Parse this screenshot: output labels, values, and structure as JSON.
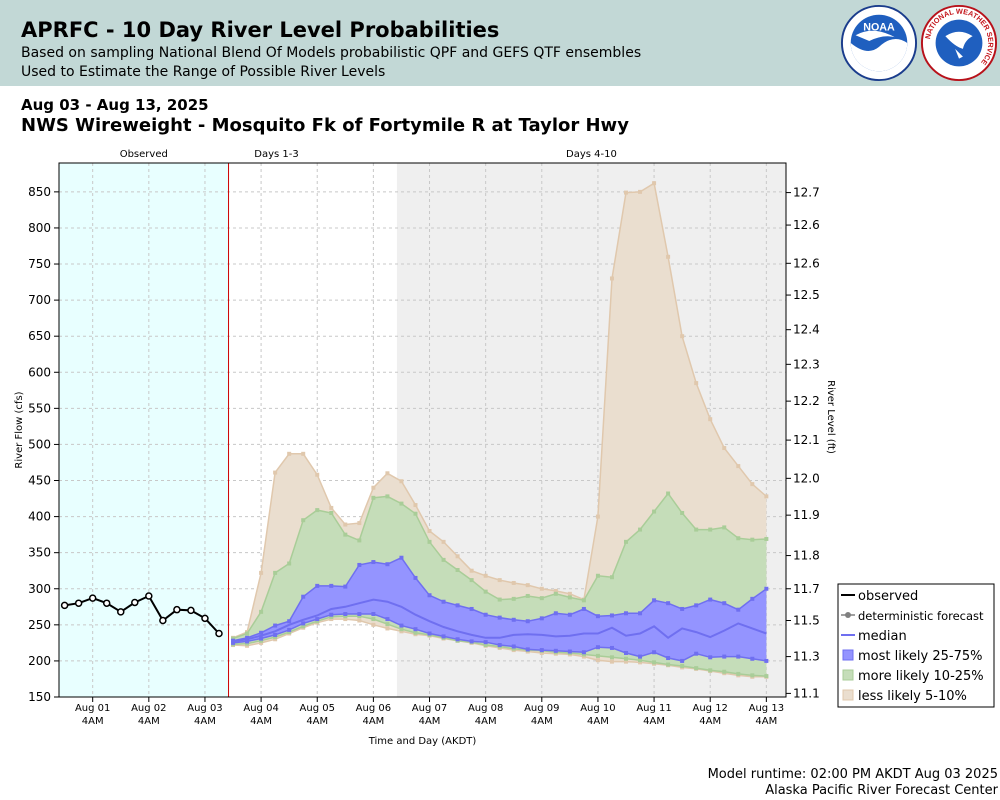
{
  "header": {
    "title": "APRFC - 10 Day River Level Probabilities",
    "subtitle1": "Based on sampling National Blend Of Models probabilistic QPF and GEFS QTF ensembles",
    "subtitle2": "Used to Estimate the Range of Possible River Levels",
    "noaa_logo_text": "NOAA",
    "nws_logo_text": "NATIONAL WEATHER SERVICE"
  },
  "date_range": "Aug 03 - Aug 13, 2025",
  "station_name": "NWS Wireweight - Mosquito Fk of Fortymile R at Taylor Hwy",
  "footer": {
    "runtime": "Model runtime: 02:00 PM AKDT Aug 03 2025",
    "center": "Alaska Pacific River Forecast Center"
  },
  "colors": {
    "observed_bg": "#e8ffff",
    "days4_10_bg": "#efefef",
    "less_likely": "#eadecf",
    "less_likely_edge": "#e0c8ad",
    "more_likely": "#c5ddb9",
    "more_likely_edge": "#a9cd98",
    "most_likely": "#9494ff",
    "most_likely_edge": "#6f6ff0",
    "median": "#6f6ff0",
    "observed": "#000000",
    "forecast_line": "#cc0000"
  },
  "chart_data": {
    "type": "area",
    "xlabel": "Time and Day (AKDT)",
    "ylabel": "River Flow (cfs)",
    "ylabel_right": "River Level (ft)",
    "ylim": [
      150,
      890
    ],
    "y_ticks": [
      150,
      200,
      250,
      300,
      350,
      400,
      450,
      500,
      550,
      600,
      650,
      700,
      750,
      800,
      850
    ],
    "y_right_ticks": [
      {
        "flow": 155,
        "label": "11.1"
      },
      {
        "flow": 206,
        "label": "11.3"
      },
      {
        "flow": 256,
        "label": "11.5"
      },
      {
        "flow": 300,
        "label": "11.7"
      },
      {
        "flow": 346,
        "label": "11.8"
      },
      {
        "flow": 402,
        "label": "11.9"
      },
      {
        "flow": 453,
        "label": "12.0"
      },
      {
        "flow": 506,
        "label": "12.1"
      },
      {
        "flow": 560,
        "label": "12.2"
      },
      {
        "flow": 611,
        "label": "12.3"
      },
      {
        "flow": 659,
        "label": "12.4"
      },
      {
        "flow": 707,
        "label": "12.5"
      },
      {
        "flow": 751,
        "label": "12.6"
      },
      {
        "flow": 804,
        "label": "12.6"
      },
      {
        "flow": 849,
        "label": "12.7"
      }
    ],
    "xlim_days": [
      -2.6,
      10.35
    ],
    "x_ticks": [
      {
        "day": -2,
        "label": "Aug 01",
        "sub": "4AM"
      },
      {
        "day": -1,
        "label": "Aug 02",
        "sub": "4AM"
      },
      {
        "day": 0,
        "label": "Aug 03",
        "sub": "4AM"
      },
      {
        "day": 1,
        "label": "Aug 04",
        "sub": "4AM"
      },
      {
        "day": 2,
        "label": "Aug 05",
        "sub": "4AM"
      },
      {
        "day": 3,
        "label": "Aug 06",
        "sub": "4AM"
      },
      {
        "day": 4,
        "label": "Aug 07",
        "sub": "4AM"
      },
      {
        "day": 5,
        "label": "Aug 08",
        "sub": "4AM"
      },
      {
        "day": 6,
        "label": "Aug 09",
        "sub": "4AM"
      },
      {
        "day": 7,
        "label": "Aug 10",
        "sub": "4AM"
      },
      {
        "day": 8,
        "label": "Aug 11",
        "sub": "4AM"
      },
      {
        "day": 9,
        "label": "Aug 12",
        "sub": "4AM"
      },
      {
        "day": 10,
        "label": "Aug 13",
        "sub": "4AM"
      }
    ],
    "regions": [
      {
        "label": "Observed",
        "start": -2.6,
        "end": 0.42
      },
      {
        "label": "Days 1-3",
        "start": 0.42,
        "end": 3.42
      },
      {
        "label": "Days 4-10",
        "start": 3.42,
        "end": 10.35
      }
    ],
    "forecast_start": 0.42,
    "observed": {
      "x": [
        -2.5,
        -2.25,
        -2.0,
        -1.75,
        -1.5,
        -1.25,
        -1.0,
        -0.75,
        -0.5,
        -0.25,
        0.0,
        0.25
      ],
      "y": [
        277,
        280,
        287,
        280,
        268,
        281,
        290,
        256,
        271,
        270,
        259,
        238
      ]
    },
    "forecast_x": [
      0.5,
      0.75,
      1.0,
      1.25,
      1.5,
      1.75,
      2.0,
      2.25,
      2.5,
      2.75,
      3.0,
      3.25,
      3.5,
      3.75,
      4.0,
      4.25,
      4.5,
      4.75,
      5.0,
      5.25,
      5.5,
      5.75,
      6.0,
      6.25,
      6.5,
      6.75,
      7.0,
      7.25,
      7.5,
      7.75,
      8.0,
      8.25,
      8.5,
      8.75,
      9.0,
      9.25,
      9.5,
      9.75,
      10.0
    ],
    "less_likely_upper": [
      232,
      240,
      322,
      461,
      487,
      487,
      458,
      412,
      389,
      391,
      440,
      460,
      449,
      416,
      380,
      365,
      345,
      325,
      318,
      312,
      308,
      305,
      300,
      297,
      293,
      285,
      400,
      730,
      849,
      850,
      862,
      760,
      650,
      585,
      535,
      495,
      470,
      445,
      428
    ],
    "more_likely_upper": [
      231,
      238,
      268,
      322,
      335,
      395,
      409,
      405,
      375,
      367,
      426,
      428,
      418,
      404,
      365,
      340,
      326,
      312,
      296,
      285,
      286,
      290,
      287,
      293,
      288,
      284,
      318,
      316,
      365,
      382,
      407,
      432,
      405,
      382,
      382,
      385,
      370,
      368,
      369
    ],
    "most_likely_upper": [
      228,
      232,
      239,
      249,
      255,
      289,
      304,
      304,
      303,
      333,
      337,
      334,
      343,
      315,
      291,
      282,
      277,
      272,
      264,
      260,
      257,
      255,
      259,
      266,
      264,
      272,
      262,
      263,
      266,
      266,
      284,
      280,
      272,
      277,
      285,
      280,
      271,
      286,
      300
    ],
    "median": [
      227,
      230,
      235,
      241,
      250,
      257,
      263,
      272,
      275,
      280,
      285,
      282,
      275,
      264,
      255,
      247,
      241,
      236,
      232,
      232,
      236,
      237,
      236,
      234,
      235,
      238,
      238,
      246,
      235,
      238,
      248,
      232,
      245,
      240,
      233,
      242,
      252,
      245,
      238
    ],
    "most_likely_lower": [
      225,
      227,
      231,
      236,
      243,
      252,
      258,
      264,
      265,
      265,
      265,
      258,
      249,
      244,
      238,
      234,
      230,
      227,
      226,
      222,
      220,
      216,
      215,
      214,
      213,
      212,
      219,
      218,
      211,
      206,
      212,
      204,
      200,
      210,
      205,
      206,
      206,
      203,
      200
    ],
    "more_likely_lower": [
      223,
      224,
      228,
      233,
      240,
      248,
      255,
      261,
      262,
      262,
      258,
      251,
      244,
      239,
      236,
      232,
      228,
      226,
      222,
      220,
      217,
      215,
      214,
      212,
      211,
      209,
      207,
      205,
      203,
      201,
      198,
      195,
      193,
      190,
      187,
      185,
      182,
      180,
      179
    ],
    "less_likely_lower": [
      222,
      221,
      225,
      230,
      238,
      246,
      253,
      258,
      258,
      256,
      250,
      245,
      241,
      237,
      235,
      231,
      228,
      225,
      221,
      218,
      215,
      213,
      211,
      210,
      209,
      206,
      201,
      199,
      199,
      198,
      196,
      194,
      191,
      189,
      186,
      183,
      180,
      178,
      178
    ],
    "legend": [
      {
        "key": "observed",
        "label": "observed"
      },
      {
        "key": "deterministic",
        "label": "deterministic forecast"
      },
      {
        "key": "median",
        "label": "median"
      },
      {
        "key": "most",
        "label": "most likely 25-75%"
      },
      {
        "key": "more",
        "label": "more likely 10-25%"
      },
      {
        "key": "less",
        "label": "less likely 5-10%"
      }
    ],
    "legend_position": "lower-right",
    "grid": true
  }
}
